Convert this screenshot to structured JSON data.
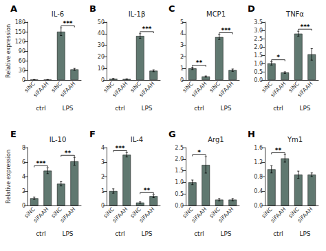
{
  "chart_data": [
    {
      "type": "bar",
      "panel_label": "A",
      "title": "IL-6",
      "ylabel": "Relative expression",
      "categories": [
        "siNC",
        "siFAAH",
        "siNC",
        "siFAAH"
      ],
      "values": [
        1,
        1,
        150,
        33
      ],
      "errors": [
        0.5,
        0.5,
        12,
        3
      ],
      "color": "#607870",
      "ylim": [
        0,
        180
      ],
      "yticks": [
        0,
        30,
        60,
        90,
        120,
        150,
        180
      ],
      "grid": false,
      "groups": [
        {
          "text": "ctrl",
          "between": [
            0,
            1
          ]
        },
        {
          "text": "LPS",
          "between": [
            2,
            3
          ]
        }
      ],
      "significance": [
        {
          "between": [
            2,
            3
          ],
          "text": "***"
        }
      ]
    },
    {
      "type": "bar",
      "panel_label": "B",
      "title": "IL-1β",
      "categories": [
        "siNC",
        "siFAAH",
        "siNC",
        "siFAAH"
      ],
      "values": [
        1,
        0.8,
        38,
        8
      ],
      "errors": [
        0.3,
        0.2,
        2,
        0.8
      ],
      "color": "#607870",
      "ylim": [
        0,
        50
      ],
      "yticks": [
        0,
        10,
        20,
        30,
        40,
        50
      ],
      "grid": false,
      "groups": [
        {
          "text": "ctrl",
          "between": [
            0,
            1
          ]
        },
        {
          "text": "LPS",
          "between": [
            2,
            3
          ]
        }
      ],
      "significance": [
        {
          "between": [
            2,
            3
          ],
          "text": "***"
        }
      ]
    },
    {
      "type": "bar",
      "panel_label": "C",
      "title": "MCP1",
      "categories": [
        "siNC",
        "siFAAH",
        "siNC",
        "siFAAH"
      ],
      "values": [
        1.0,
        0.3,
        3.7,
        0.85
      ],
      "errors": [
        0.1,
        0.05,
        0.2,
        0.1
      ],
      "color": "#607870",
      "ylim": [
        0,
        5
      ],
      "yticks": [
        0,
        1,
        2,
        3,
        4,
        5
      ],
      "grid": false,
      "groups": [
        {
          "text": "ctrl",
          "between": [
            0,
            1
          ]
        },
        {
          "text": "LPS",
          "between": [
            2,
            3
          ]
        }
      ],
      "significance": [
        {
          "between": [
            0,
            1
          ],
          "text": "**"
        },
        {
          "between": [
            2,
            3
          ],
          "text": "***"
        }
      ]
    },
    {
      "type": "bar",
      "panel_label": "D",
      "title": "TNFα",
      "categories": [
        "siNC",
        "siFAAH",
        "siNC",
        "siFAAH"
      ],
      "values": [
        1.0,
        0.45,
        2.8,
        1.55
      ],
      "errors": [
        0.1,
        0.05,
        0.15,
        0.35
      ],
      "color": "#607870",
      "ylim": [
        0,
        3.5
      ],
      "yticks": [
        {
          "value": 0,
          "label": "0.0"
        },
        0.5,
        {
          "value": 1,
          "label": "1.0"
        },
        1.5,
        {
          "value": 2,
          "label": "2.0"
        },
        2.5,
        {
          "value": 3,
          "label": "3.0"
        },
        3.5
      ],
      "grid": false,
      "groups": [
        {
          "text": "ctrl",
          "between": [
            0,
            1
          ]
        },
        {
          "text": "LPS",
          "between": [
            2,
            3
          ]
        }
      ],
      "significance": [
        {
          "between": [
            0,
            1
          ],
          "text": "*"
        },
        {
          "between": [
            2,
            3
          ],
          "text": "***"
        }
      ]
    },
    {
      "type": "bar",
      "panel_label": "E",
      "title": "IL-10",
      "ylabel": "Relative expression",
      "categories": [
        "siNC",
        "siFAAH",
        "siNC",
        "siFAAH"
      ],
      "values": [
        1.0,
        4.8,
        3.0,
        6.1
      ],
      "errors": [
        0.15,
        0.4,
        0.3,
        0.55
      ],
      "color": "#607870",
      "ylim": [
        0,
        8
      ],
      "yticks": [
        0,
        2,
        4,
        6,
        8
      ],
      "grid": false,
      "groups": [
        {
          "text": "ctrl",
          "between": [
            0,
            1
          ]
        },
        {
          "text": "LPS",
          "between": [
            2,
            3
          ]
        }
      ],
      "significance": [
        {
          "between": [
            0,
            1
          ],
          "text": "***"
        },
        {
          "between": [
            2,
            3
          ],
          "text": "**"
        }
      ]
    },
    {
      "type": "bar",
      "panel_label": "F",
      "title": "IL-4",
      "categories": [
        "siNC",
        "siFAAH",
        "siNC",
        "siFAAH"
      ],
      "values": [
        1.0,
        3.5,
        0.2,
        0.65
      ],
      "errors": [
        0.15,
        0.15,
        0.05,
        0.1
      ],
      "color": "#607870",
      "ylim": [
        0,
        4
      ],
      "yticks": [
        0,
        1,
        2,
        3,
        4
      ],
      "grid": false,
      "groups": [
        {
          "text": "ctrl",
          "between": [
            0,
            1
          ]
        },
        {
          "text": "LPS",
          "between": [
            2,
            3
          ]
        }
      ],
      "significance": [
        {
          "between": [
            0,
            1
          ],
          "text": "***"
        },
        {
          "between": [
            2,
            3
          ],
          "text": "**"
        }
      ]
    },
    {
      "type": "bar",
      "panel_label": "G",
      "title": "Arg1",
      "categories": [
        "siNC",
        "siFAAH",
        "siNC",
        "siFAAH"
      ],
      "values": [
        1.0,
        1.75,
        0.25,
        0.25
      ],
      "errors": [
        0.1,
        0.35,
        0.05,
        0.05
      ],
      "color": "#607870",
      "ylim": [
        0,
        2.5
      ],
      "yticks": [
        {
          "value": 0,
          "label": "0.0"
        },
        0.5,
        {
          "value": 1,
          "label": "1.0"
        },
        1.5,
        {
          "value": 2,
          "label": "2.0"
        },
        2.5
      ],
      "grid": false,
      "groups": [
        {
          "text": "ctrl",
          "between": [
            0,
            1
          ]
        },
        {
          "text": "LPS",
          "between": [
            2,
            3
          ]
        }
      ],
      "significance": [
        {
          "between": [
            0,
            1
          ],
          "text": "*"
        }
      ]
    },
    {
      "type": "bar",
      "panel_label": "H",
      "title": "Ym1",
      "categories": [
        "siNC",
        "siFAAH",
        "siNC",
        "siFAAH"
      ],
      "values": [
        1.0,
        1.3,
        0.85,
        0.85
      ],
      "errors": [
        0.1,
        0.1,
        0.1,
        0.05
      ],
      "color": "#607870",
      "ylim": [
        0,
        1.6
      ],
      "yticks": [
        {
          "value": 0,
          "label": "0.0"
        },
        0.4,
        0.8,
        1.2,
        1.6
      ],
      "grid": false,
      "groups": [
        {
          "text": "ctrl",
          "between": [
            0,
            1
          ]
        },
        {
          "text": "LPS",
          "between": [
            2,
            3
          ]
        }
      ],
      "significance": [
        {
          "between": [
            0,
            1
          ],
          "text": "**"
        }
      ]
    }
  ]
}
